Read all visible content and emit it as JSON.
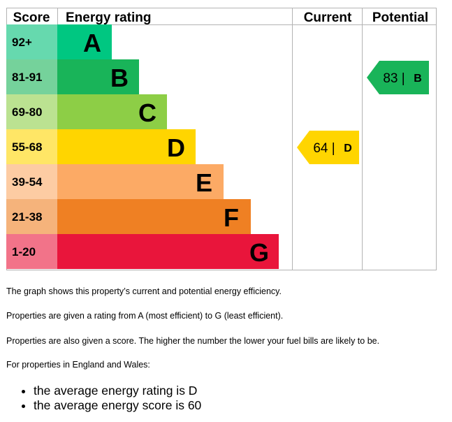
{
  "chart_data": {
    "type": "bar",
    "header": {
      "score": "Score",
      "rating": "Energy rating",
      "current": "Current",
      "potential": "Potential"
    },
    "bands": [
      {
        "range": "92+",
        "letter": "A",
        "color": "#00c781",
        "score_color": "#66d9ae"
      },
      {
        "range": "81-91",
        "letter": "B",
        "color": "#19b459",
        "score_color": "#75d29b"
      },
      {
        "range": "69-80",
        "letter": "C",
        "color": "#8dce46",
        "score_color": "#bbe291"
      },
      {
        "range": "55-68",
        "letter": "D",
        "color": "#ffd500",
        "score_color": "#ffe666"
      },
      {
        "range": "39-54",
        "letter": "E",
        "color": "#fcaa65",
        "score_color": "#fdcca3"
      },
      {
        "range": "21-38",
        "letter": "F",
        "color": "#ef8023",
        "score_color": "#f5b37b"
      },
      {
        "range": "1-20",
        "letter": "G",
        "color": "#e9153b",
        "score_color": "#f27389"
      }
    ],
    "current": {
      "score": 64,
      "letter": "D",
      "color": "#ffd500"
    },
    "potential": {
      "score": 83,
      "letter": "B",
      "color": "#19b459"
    }
  },
  "text": {
    "p1": "The graph shows this property’s current and potential energy efficiency.",
    "p2": "Properties are given a rating from A (most efficient) to G (least efficient).",
    "p3": "Properties are also given a score. The higher the number the lower your fuel bills are likely to be.",
    "p4": "For properties in England and Wales:",
    "bullets": [
      "the average energy rating is D",
      "the average energy score is 60"
    ]
  }
}
